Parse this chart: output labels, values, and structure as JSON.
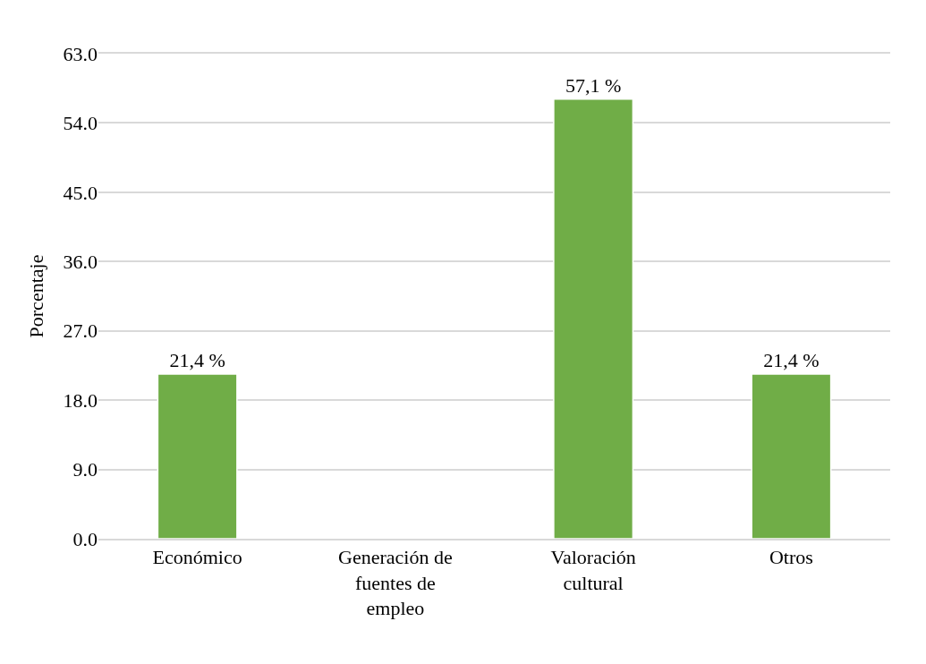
{
  "chart_data": {
    "type": "bar",
    "ylabel": "Porcentaje",
    "categories": [
      "Económico",
      "Generación de fuentes de empleo",
      "Valoración cultural",
      "Otros"
    ],
    "values": [
      21.4,
      null,
      57.1,
      21.4
    ],
    "value_labels": [
      "21,4 %",
      null,
      "57,1 %",
      "21,4 %"
    ],
    "color": "#70ad47",
    "ylim": [
      0,
      63
    ],
    "yticks": [
      {
        "value": 0,
        "label": "0.0"
      },
      {
        "value": 9,
        "label": "9.0"
      },
      {
        "value": 18,
        "label": "18.0"
      },
      {
        "value": 27,
        "label": "27.0"
      },
      {
        "value": 36,
        "label": "36.0"
      },
      {
        "value": 45,
        "label": "45.0"
      },
      {
        "value": 54,
        "label": "54.0"
      },
      {
        "value": 63,
        "label": "63.0"
      }
    ],
    "grid": "y"
  }
}
